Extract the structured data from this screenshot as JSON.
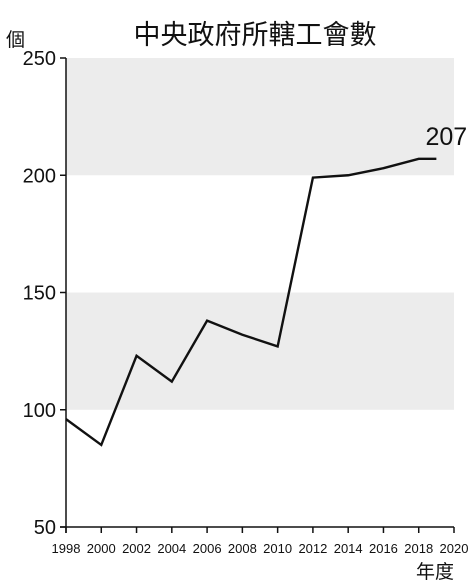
{
  "chart_data": {
    "type": "line",
    "title": "中央政府所轄工會數",
    "ylabel": "個",
    "xlabel": "年度",
    "ylim": [
      50,
      250
    ],
    "yticks": [
      50,
      100,
      150,
      200,
      250
    ],
    "xlim": [
      1998,
      2020
    ],
    "xticks": [
      1998,
      2000,
      2002,
      2004,
      2006,
      2008,
      2010,
      2012,
      2014,
      2016,
      2018,
      2020
    ],
    "x": [
      1998,
      2000,
      2002,
      2004,
      2006,
      2008,
      2010,
      2012,
      2014,
      2016,
      2018,
      2019
    ],
    "series": [
      {
        "values": [
          96,
          85,
          123,
          112,
          138,
          132,
          127,
          199,
          200,
          203,
          207,
          207
        ]
      }
    ],
    "annotation": {
      "text": "207",
      "x": 2019,
      "y": 207
    },
    "bands": [
      [
        100,
        150
      ],
      [
        200,
        250
      ]
    ],
    "grid": false,
    "colors": {
      "line": "#111111",
      "band": "#ececec",
      "axis": "#111111"
    }
  }
}
